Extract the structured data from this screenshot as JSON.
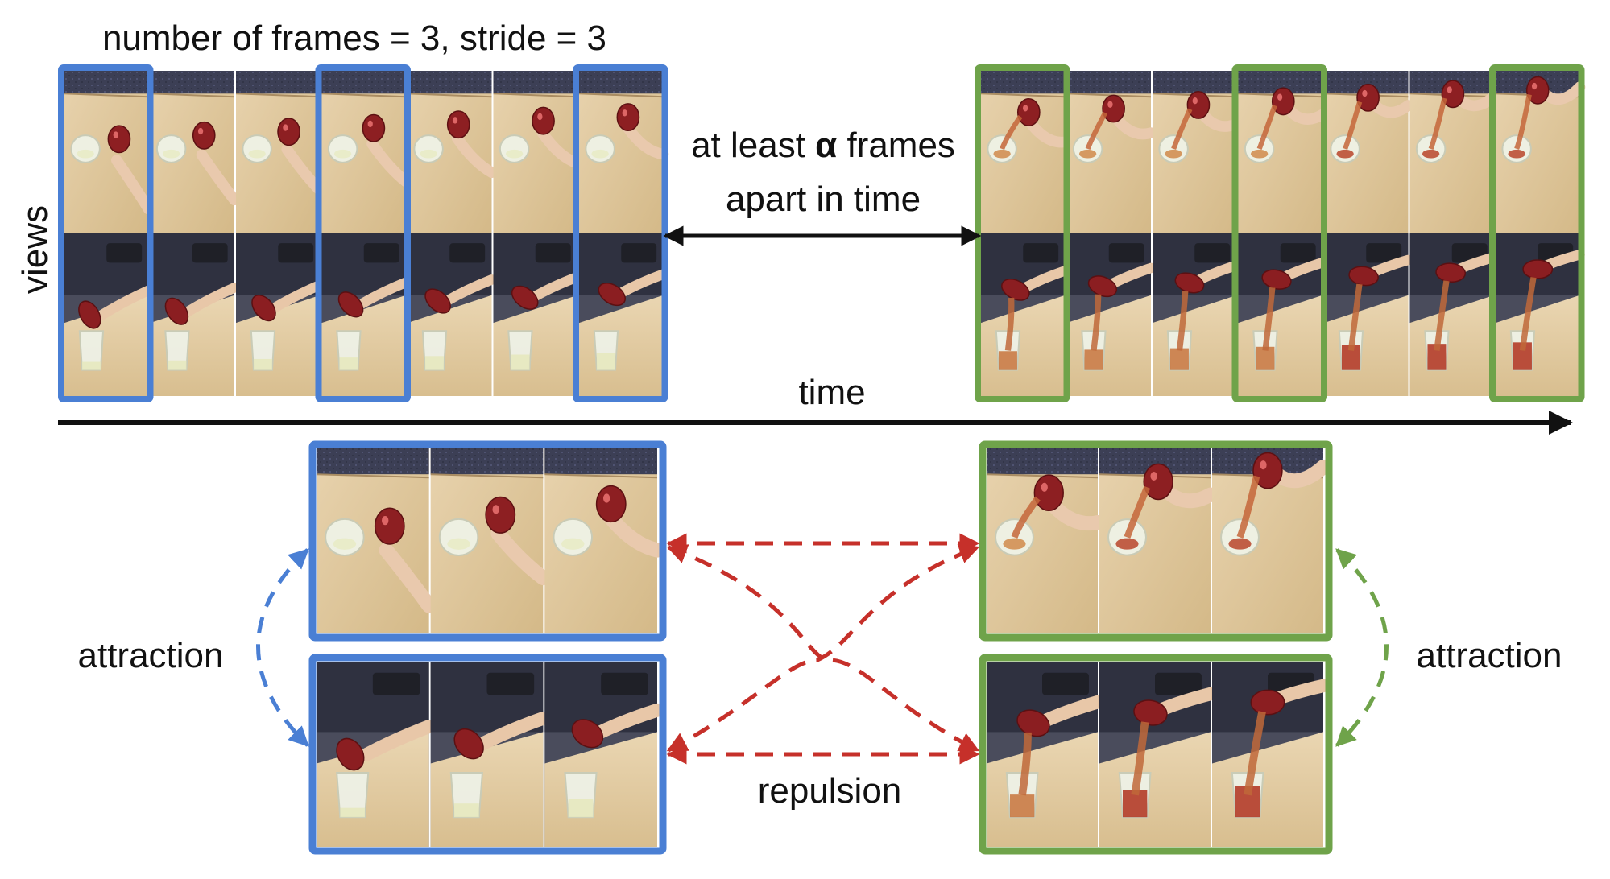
{
  "labels": {
    "top_caption": "number of frames = 3, stride = 3",
    "views": "views",
    "gap_line1_prefix": "at least ",
    "gap_alpha": "α",
    "gap_line1_suffix": " frames",
    "gap_line2": "apart in time",
    "time": "time",
    "attraction_left": "attraction",
    "attraction_right": "attraction",
    "repulsion": "repulsion"
  },
  "colors": {
    "blue": "#4a7fd4",
    "green": "#6fa34a",
    "red": "#c6302a",
    "black": "#111111"
  },
  "frames": {
    "per_row": 7,
    "views": 2,
    "sampled_indices": [
      0,
      3,
      6
    ],
    "number_of_frames": 3,
    "stride": 3
  },
  "icons": {
    "cup": "plastic-cup",
    "bottle": "red-bottle",
    "hand": "hand",
    "chair": "office-chair"
  }
}
